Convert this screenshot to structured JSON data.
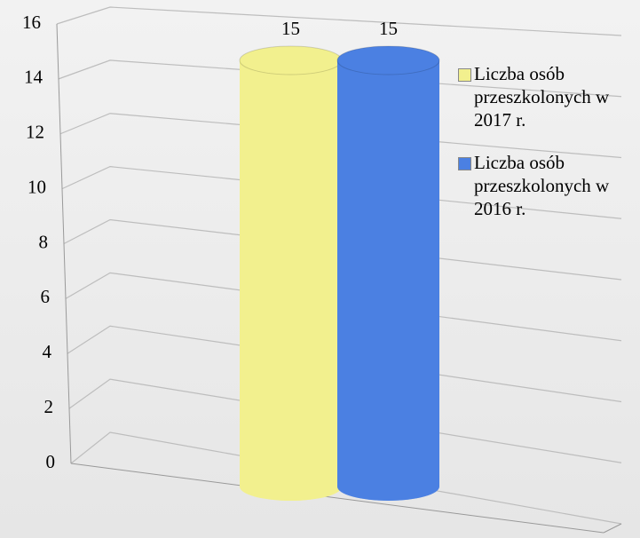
{
  "chart_data": {
    "type": "bar",
    "categories": [
      null
    ],
    "series": [
      {
        "name": "Liczba osób przeszkolonych w 2017 r.",
        "color": "#f2f08e",
        "values": [
          15
        ]
      },
      {
        "name": "Liczba osób przeszkolonych w 2016 r.",
        "color": "#4b80e2",
        "values": [
          15
        ]
      }
    ],
    "ylim": [
      0,
      16
    ],
    "yticks": [
      0,
      2,
      4,
      6,
      8,
      10,
      12,
      14,
      16
    ],
    "grid": true,
    "legend": "right"
  }
}
